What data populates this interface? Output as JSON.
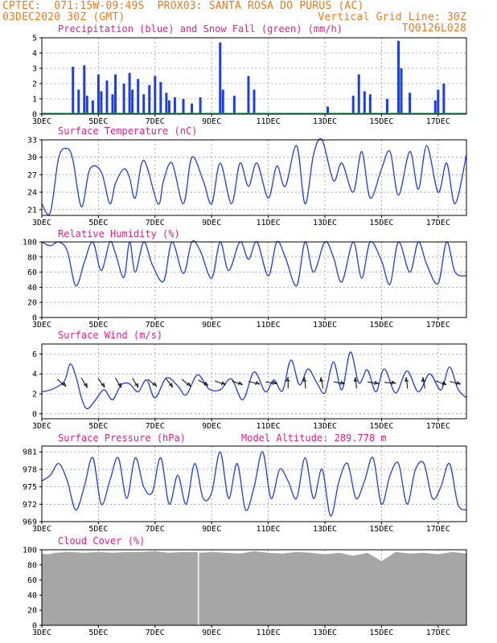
{
  "header": {
    "line1_left": "CPTEC:  071:15W-09:49S  PROX03: SANTA ROSA DO PURUS (AC)",
    "line2_left": "03DEC2020 30Z (GMT)",
    "line2_right": "Vertical Grid Line: 30Z",
    "line3_right": "TQ0126L028"
  },
  "colors": {
    "header": "#ee7a1c",
    "title": "#e0208c",
    "line": "#1f3fd8",
    "precip": "#1f3fd8",
    "snow": "#16a34a",
    "cloud": "#a6a6a6",
    "wind_arrow": "#000000"
  },
  "x_ticks": [
    "3DEC",
    "5DEC",
    "7DEC",
    "9DEC",
    "11DEC",
    "13DEC",
    "15DEC",
    "17DEC"
  ],
  "x_range_days": [
    3,
    18
  ],
  "chart_data": [
    {
      "type": "bar",
      "title": "Precipitation (blue) and Snow Fall (green) (mm/h)",
      "ylim": [
        0,
        5
      ],
      "yticks": [
        "0",
        "1",
        "2",
        "3",
        "4",
        "5"
      ],
      "series": [
        {
          "name": "Precipitation",
          "x": [
            4.1,
            4.3,
            4.5,
            4.6,
            4.8,
            5.0,
            5.1,
            5.3,
            5.5,
            5.6,
            5.9,
            6.1,
            6.2,
            6.4,
            6.6,
            6.8,
            7.0,
            7.2,
            7.4,
            7.5,
            7.7,
            8.0,
            8.3,
            8.6,
            9.3,
            9.4,
            9.8,
            10.3,
            10.5,
            13.1,
            14.0,
            14.2,
            14.4,
            14.6,
            15.2,
            15.6,
            15.7,
            16.0,
            16.9,
            17.0,
            17.2
          ],
          "values": [
            3.1,
            1.6,
            3.2,
            1.2,
            0.9,
            2.6,
            1.5,
            2.2,
            1.3,
            2.6,
            2.0,
            2.7,
            1.6,
            2.3,
            1.3,
            1.9,
            2.5,
            2.1,
            1.4,
            0.9,
            1.1,
            1.0,
            0.7,
            1.1,
            4.7,
            1.6,
            1.2,
            2.5,
            1.6,
            0.5,
            1.2,
            2.6,
            1.5,
            1.3,
            1.0,
            4.8,
            3.0,
            1.4,
            0.9,
            1.6,
            2.0
          ]
        },
        {
          "name": "Snow Fall",
          "x": [],
          "values": []
        }
      ]
    },
    {
      "type": "line",
      "title": "Surface Temperature (nC)",
      "ylim": [
        20,
        33
      ],
      "yticks": [
        "21",
        "24",
        "27",
        "30",
        "33"
      ],
      "x": [
        3.0,
        3.3,
        3.6,
        3.9,
        4.1,
        4.4,
        4.7,
        5.1,
        5.4,
        5.6,
        5.9,
        6.1,
        6.3,
        6.6,
        7.1,
        7.3,
        7.6,
        8.0,
        8.3,
        8.7,
        9.0,
        9.3,
        9.7,
        10.0,
        10.3,
        10.6,
        11.0,
        11.3,
        11.6,
        12.0,
        12.3,
        12.6,
        12.9,
        13.3,
        13.6,
        14.0,
        14.3,
        14.6,
        15.0,
        15.3,
        15.6,
        16.0,
        16.3,
        16.6,
        17.0,
        17.3,
        17.6,
        18.0
      ],
      "values": [
        22,
        20.5,
        30,
        31.5,
        29.5,
        21.5,
        28,
        27.5,
        22,
        25.5,
        28,
        26.5,
        23,
        29.5,
        22,
        26,
        29,
        22,
        30,
        26,
        22,
        29,
        22,
        29,
        25,
        29,
        23,
        28.5,
        25,
        32,
        22,
        30.5,
        33,
        26,
        29,
        24,
        31,
        23,
        28,
        31,
        23.5,
        31,
        24.5,
        32,
        24,
        29,
        22,
        30.5
      ]
    },
    {
      "type": "line",
      "title": "Relative Humidity (%)",
      "ylim": [
        0,
        100
      ],
      "yticks": [
        "0",
        "20",
        "40",
        "60",
        "80",
        "100"
      ],
      "x": [
        3.0,
        3.3,
        3.6,
        3.9,
        4.2,
        4.5,
        4.8,
        5.1,
        5.4,
        5.6,
        5.9,
        6.1,
        6.3,
        6.6,
        6.9,
        7.3,
        7.6,
        8.0,
        8.3,
        8.6,
        9.0,
        9.3,
        9.6,
        10.0,
        10.3,
        10.6,
        11.0,
        11.3,
        11.6,
        12.0,
        12.3,
        12.6,
        13.0,
        13.3,
        13.6,
        14.0,
        14.3,
        14.6,
        15.0,
        15.3,
        15.6,
        16.0,
        16.3,
        16.6,
        17.0,
        17.3,
        17.6,
        18.0
      ],
      "values": [
        100,
        95,
        100,
        88,
        42,
        73,
        100,
        62,
        100,
        85,
        53,
        100,
        60,
        100,
        70,
        48,
        100,
        58,
        100,
        88,
        52,
        100,
        62,
        100,
        77,
        100,
        55,
        100,
        80,
        42,
        100,
        60,
        100,
        80,
        47,
        100,
        52,
        100,
        75,
        44,
        100,
        60,
        100,
        70,
        45,
        100,
        60,
        55
      ]
    },
    {
      "type": "line",
      "title": "Surface Wind (m/s)",
      "ylim": [
        -0.5,
        7
      ],
      "yticks": [
        "0",
        "2",
        "4",
        "6"
      ],
      "x": [
        3.0,
        3.4,
        3.8,
        4.0,
        4.2,
        4.4,
        4.6,
        4.9,
        5.2,
        5.5,
        5.8,
        6.1,
        6.4,
        6.7,
        7.0,
        7.4,
        7.8,
        8.1,
        8.5,
        8.9,
        9.3,
        9.7,
        10.1,
        10.5,
        10.9,
        11.2,
        11.5,
        11.8,
        12.1,
        12.4,
        12.7,
        13.0,
        13.3,
        13.6,
        13.9,
        14.2,
        14.5,
        14.8,
        15.1,
        15.5,
        15.9,
        16.3,
        16.7,
        17.1,
        17.4,
        17.7,
        18.0
      ],
      "values": [
        2.2,
        2.5,
        3.3,
        5.0,
        3.8,
        1.6,
        0.5,
        1.4,
        2.4,
        1.4,
        2.9,
        3.0,
        2.2,
        3.4,
        1.6,
        3.6,
        2.8,
        1.9,
        3.9,
        2.5,
        2.4,
        3.5,
        1.4,
        4.2,
        2.2,
        3.4,
        2.3,
        5.4,
        2.9,
        4.5,
        3.2,
        2.1,
        5.2,
        2.4,
        6.2,
        3.1,
        4.4,
        2.2,
        4.5,
        2.1,
        4.3,
        2.2,
        4.0,
        2.4,
        4.7,
        2.5,
        1.6
      ],
      "arrows": {
        "x": [
          3.7,
          4.5,
          5.1,
          5.7,
          6.3,
          6.9,
          7.5,
          8.1,
          8.7,
          9.3,
          9.9,
          10.5,
          11.1,
          11.7,
          12.3,
          12.9,
          13.5,
          14.1,
          14.7,
          15.3,
          15.9,
          16.5,
          17.1,
          17.6
        ],
        "angle_deg": [
          -40,
          -60,
          -55,
          -60,
          -60,
          -40,
          -55,
          -40,
          -30,
          -20,
          -20,
          -15,
          -10,
          90,
          95,
          100,
          -10,
          95,
          -10,
          -5,
          95,
          100,
          -20,
          -15
        ]
      }
    },
    {
      "type": "line",
      "title": "Surface Pressure (hPa)",
      "annotation": "Model Altitude: 289.778 m",
      "ylim": [
        969,
        982
      ],
      "yticks": [
        "969",
        "972",
        "975",
        "978",
        "981"
      ],
      "x": [
        3.0,
        3.3,
        3.6,
        3.9,
        4.2,
        4.5,
        4.8,
        5.1,
        5.4,
        5.7,
        6.0,
        6.3,
        6.6,
        6.9,
        7.2,
        7.5,
        7.8,
        8.1,
        8.4,
        8.7,
        9.0,
        9.3,
        9.6,
        9.9,
        10.2,
        10.5,
        10.8,
        11.1,
        11.4,
        11.7,
        12.0,
        12.3,
        12.6,
        12.9,
        13.2,
        13.5,
        13.8,
        14.1,
        14.4,
        14.7,
        15.0,
        15.3,
        15.6,
        15.9,
        16.2,
        16.5,
        16.8,
        17.1,
        17.4,
        17.7,
        18.0
      ],
      "values": [
        976,
        977,
        979,
        976,
        971,
        975,
        980,
        972,
        976,
        980,
        973,
        980,
        975,
        974,
        980,
        972,
        977,
        972,
        979,
        973,
        974,
        981,
        973,
        979,
        971,
        975,
        981,
        973,
        978,
        976,
        973,
        980,
        973,
        978,
        970,
        976,
        979,
        973,
        976,
        980,
        972,
        977,
        979,
        972,
        978,
        979,
        973,
        975,
        979,
        972,
        971
      ]
    },
    {
      "type": "area",
      "title": "Cloud Cover (%)",
      "ylim": [
        0,
        100
      ],
      "yticks": [
        "0",
        "20",
        "40",
        "60",
        "80",
        "100"
      ],
      "x": [
        3.0,
        3.2,
        3.5,
        4.0,
        4.5,
        5.0,
        5.5,
        6.0,
        6.5,
        7.0,
        7.5,
        8.0,
        8.5,
        8.6,
        9.0,
        9.5,
        10.0,
        10.5,
        11.0,
        11.5,
        12.0,
        12.5,
        13.0,
        13.5,
        14.0,
        14.5,
        15.0,
        15.5,
        16.0,
        16.5,
        17.0,
        17.5,
        18.0
      ],
      "values": [
        95,
        94,
        96,
        97,
        96,
        97,
        96,
        97,
        97,
        98,
        96,
        97,
        97,
        96,
        97,
        96,
        95,
        98,
        96,
        95,
        97,
        96,
        94,
        96,
        92,
        96,
        85,
        97,
        95,
        96,
        94,
        97,
        95
      ]
    }
  ]
}
